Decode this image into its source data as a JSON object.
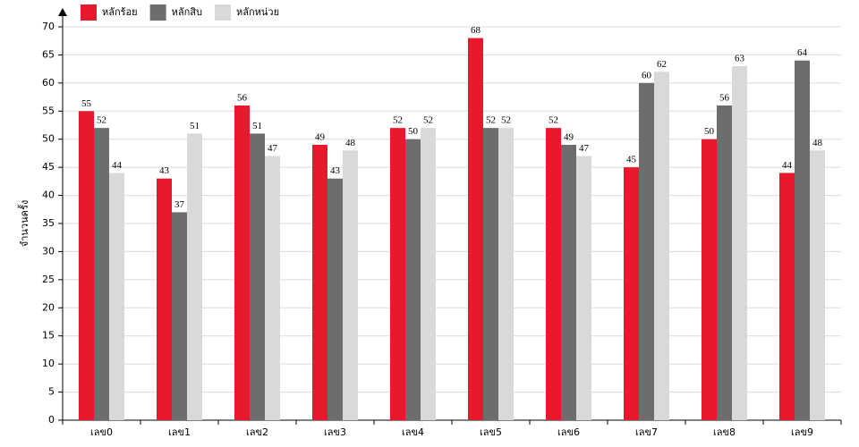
{
  "chart_data": {
    "type": "bar",
    "y_label": "จำนวนครั้ง",
    "categories": [
      "เลข0",
      "เลข1",
      "เลข2",
      "เลข3",
      "เลข4",
      "เลข5",
      "เลข6",
      "เลข7",
      "เลข8",
      "เลข9"
    ],
    "series": [
      {
        "name": "หลักร้อย",
        "color": "#e8192c",
        "values": [
          55,
          43,
          56,
          49,
          52,
          68,
          52,
          45,
          50,
          44
        ]
      },
      {
        "name": "หลักสิบ",
        "color": "#6d6d6d",
        "values": [
          52,
          37,
          51,
          43,
          50,
          52,
          49,
          60,
          56,
          64
        ]
      },
      {
        "name": "หลักหน่วย",
        "color": "#d9d9d9",
        "values": [
          44,
          51,
          47,
          48,
          52,
          52,
          47,
          62,
          63,
          48
        ]
      }
    ],
    "ylim": [
      0,
      70
    ],
    "yticks": [
      0,
      5,
      10,
      15,
      20,
      25,
      30,
      35,
      40,
      45,
      50,
      55,
      60,
      65,
      70
    ],
    "grid": true,
    "legend": "top-left"
  }
}
